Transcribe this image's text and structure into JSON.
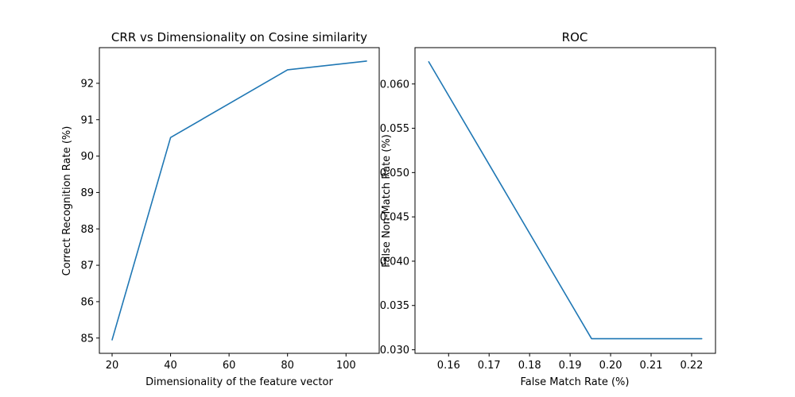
{
  "chart_data": [
    {
      "type": "line",
      "title": "CRR vs Dimensionality on Cosine similarity",
      "xlabel": "Dimensionality of the feature vector",
      "ylabel": "Correct Recognition Rate (%)",
      "xlim": [
        15.65,
        111.35
      ],
      "ylim": [
        84.58,
        92.98
      ],
      "xticks": [
        20,
        40,
        60,
        80,
        100
      ],
      "yticks": [
        85,
        86,
        87,
        88,
        89,
        90,
        91,
        92
      ],
      "grid": false,
      "color": "#1f77b4",
      "series": [
        {
          "x": [
            20,
            40,
            80,
            107
          ],
          "y": [
            84.95,
            90.51,
            92.37,
            92.61
          ]
        }
      ]
    },
    {
      "type": "line",
      "title": "ROC",
      "xlabel": "False Match Rate (%)",
      "ylabel": "False Non-Match Rate (%)",
      "xlim": [
        0.1517,
        0.2259
      ],
      "ylim": [
        0.0296,
        0.0641
      ],
      "xticks": [
        0.16,
        0.17,
        0.18,
        0.19,
        0.2,
        0.21,
        0.22
      ],
      "xtick_labels": [
        "0.16",
        "0.17",
        "0.18",
        "0.19",
        "0.20",
        "0.21",
        "0.22"
      ],
      "yticks": [
        0.03,
        0.035,
        0.04,
        0.045,
        0.05,
        0.055,
        0.06
      ],
      "ytick_labels": [
        "0.030",
        "0.035",
        "0.040",
        "0.045",
        "0.050",
        "0.055",
        "0.060"
      ],
      "grid": false,
      "color": "#1f77b4",
      "series": [
        {
          "x": [
            0.1551,
            0.1953,
            0.2225
          ],
          "y": [
            0.0625,
            0.03125,
            0.03125
          ]
        }
      ]
    }
  ]
}
